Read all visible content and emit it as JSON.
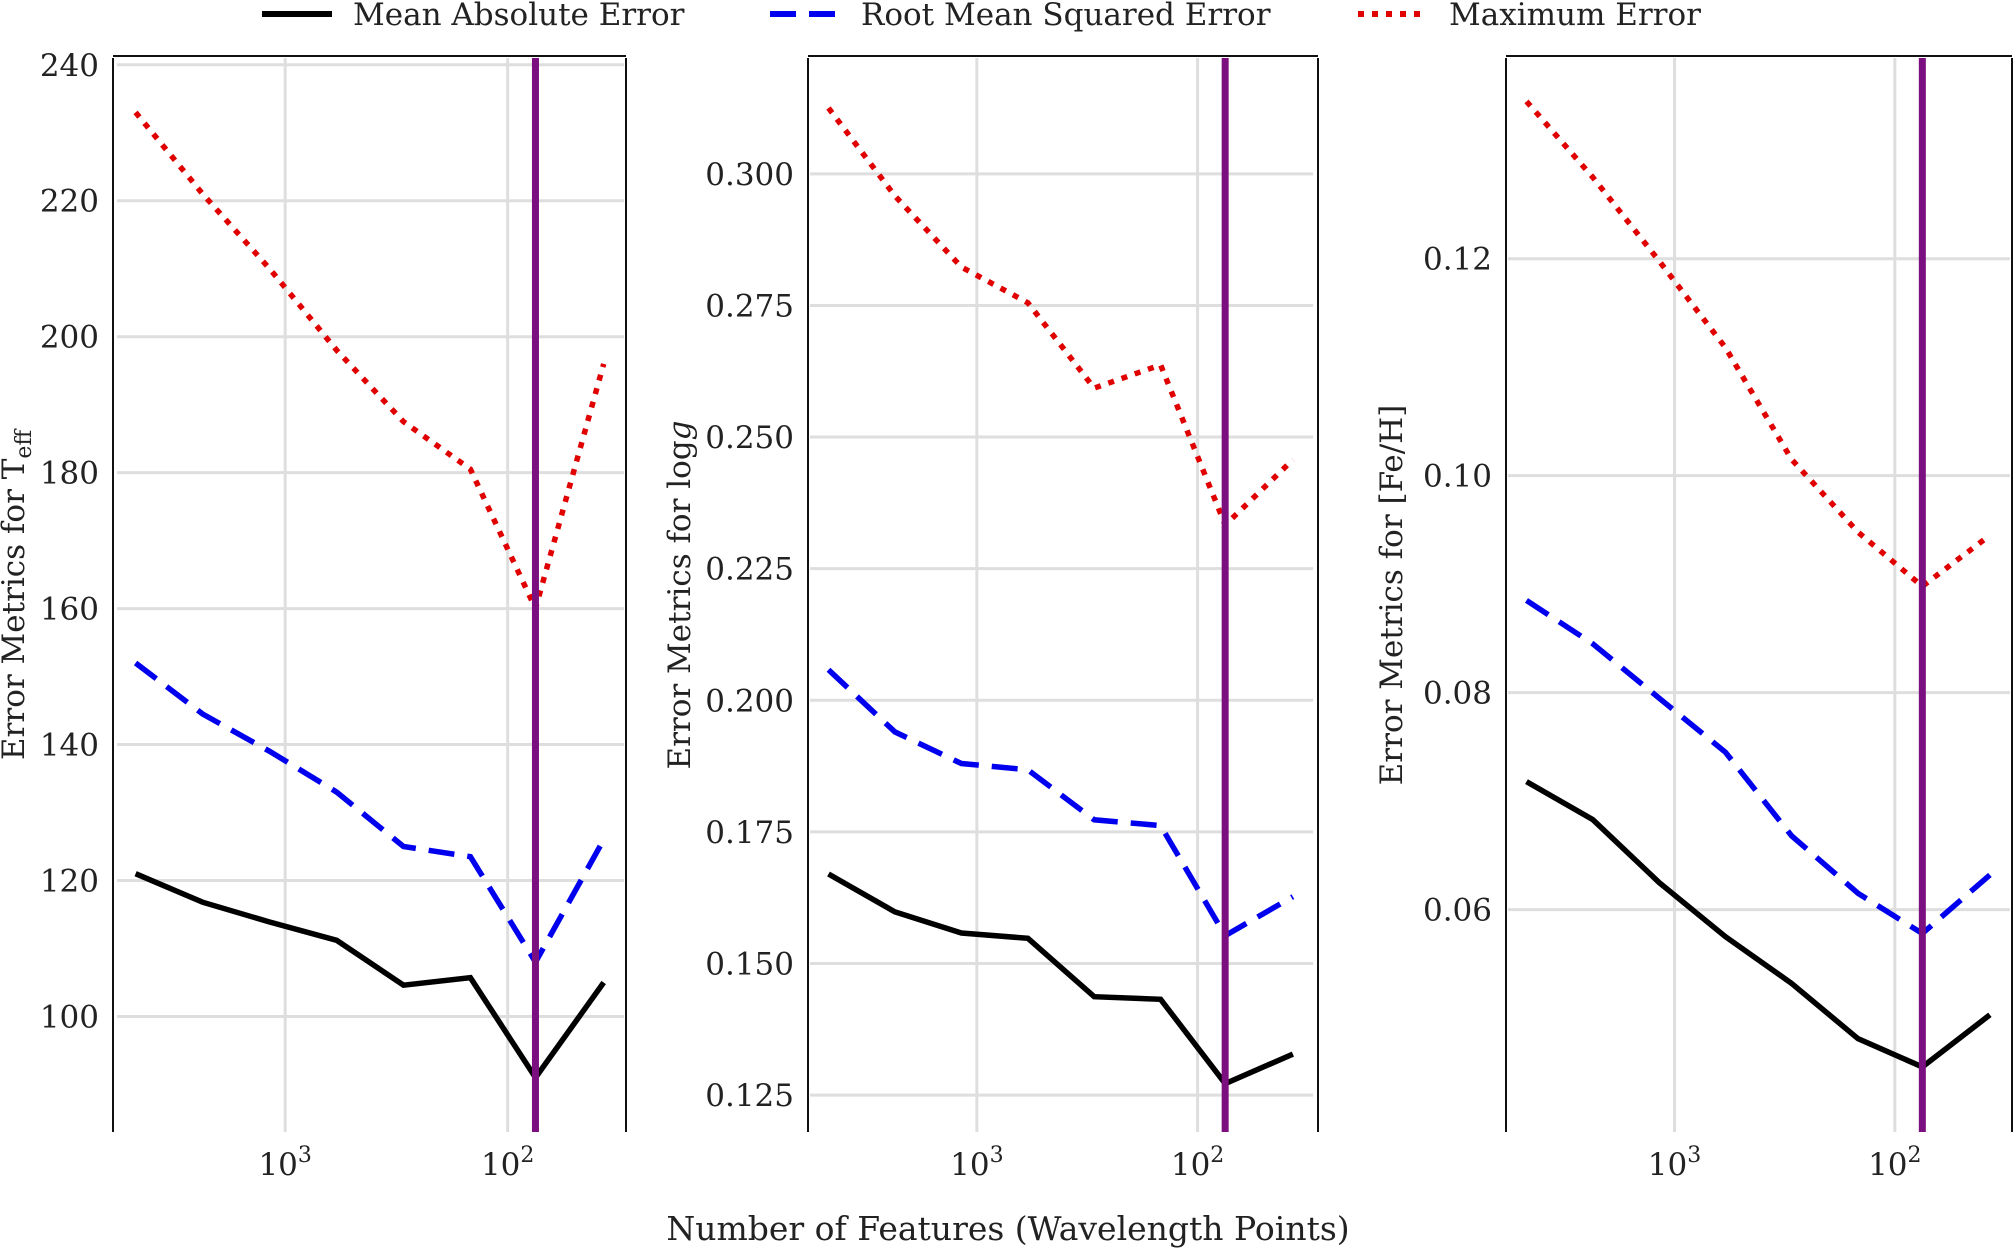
{
  "figure": {
    "xlabel": "Number of Features (Wavelength Points)",
    "legend": {
      "placement": "top-center",
      "entries": [
        {
          "name": "Mean Absolute Error",
          "color": "#000000",
          "dash": "solid"
        },
        {
          "name": "Root Mean Squared Error",
          "color": "#0000ee",
          "dash": "dashed"
        },
        {
          "name": "Maximum Error",
          "color": "#e00000",
          "dash": "dotted"
        }
      ]
    },
    "vline_color": "#7b0f7f",
    "grid": true
  },
  "chart_data": [
    {
      "type": "line",
      "ylabel": "Error Metrics for T",
      "ylabel_sub": "eff",
      "x_scale": "log",
      "x_reversed": true,
      "xlim": [
        5700,
        30
      ],
      "ylim": [
        83,
        241
      ],
      "yticks": [
        100,
        120,
        140,
        160,
        180,
        200,
        220,
        240
      ],
      "ytick_labels": [
        "100",
        "120",
        "140",
        "160",
        "180",
        "200",
        "220",
        "240"
      ],
      "xticks": [
        1000,
        100
      ],
      "xtick_labels": [
        "10^3",
        "10^2"
      ],
      "vline_x": 75,
      "x": [
        4700,
        2350,
        1175,
        587,
        294,
        147,
        75,
        37
      ],
      "series": [
        {
          "name": "Mean Absolute Error",
          "values": [
            121,
            116.8,
            113.9,
            111.2,
            104.6,
            105.7,
            91,
            105
          ]
        },
        {
          "name": "Root Mean Squared Error",
          "values": [
            152,
            144.5,
            139,
            133,
            125,
            123.5,
            108,
            126
          ]
        },
        {
          "name": "Maximum Error",
          "values": [
            233,
            221,
            210,
            198,
            187.5,
            180.5,
            160,
            196
          ]
        }
      ]
    },
    {
      "type": "line",
      "ylabel": "Error Metrics for log",
      "ylabel_italic": "g",
      "x_scale": "log",
      "x_reversed": true,
      "xlim": [
        5700,
        30
      ],
      "ylim": [
        0.118,
        0.322
      ],
      "yticks": [
        0.125,
        0.15,
        0.175,
        0.2,
        0.225,
        0.25,
        0.275,
        0.3
      ],
      "ytick_labels": [
        "0.125",
        "0.150",
        "0.175",
        "0.200",
        "0.225",
        "0.250",
        "0.275",
        "0.300"
      ],
      "xticks": [
        1000,
        100
      ],
      "xtick_labels": [
        "10^3",
        "10^2"
      ],
      "vline_x": 75,
      "x": [
        4700,
        2350,
        1175,
        587,
        294,
        147,
        75,
        37
      ],
      "series": [
        {
          "name": "Mean Absolute Error",
          "values": [
            0.167,
            0.1598,
            0.1558,
            0.1548,
            0.1437,
            0.1432,
            0.1272,
            0.1328
          ]
        },
        {
          "name": "Root Mean Squared Error",
          "values": [
            0.2058,
            0.194,
            0.188,
            0.1868,
            0.1773,
            0.1762,
            0.1553,
            0.1627
          ]
        },
        {
          "name": "Maximum Error",
          "values": [
            0.3125,
            0.2958,
            0.2823,
            0.2755,
            0.2593,
            0.2637,
            0.2333,
            0.2457
          ]
        }
      ]
    },
    {
      "type": "line",
      "ylabel": "Error Metrics for [Fe/H]",
      "x_scale": "log",
      "x_reversed": true,
      "xlim": [
        5700,
        30
      ],
      "ylim": [
        0.0395,
        0.1385
      ],
      "yticks": [
        0.06,
        0.08,
        0.1,
        0.12
      ],
      "ytick_labels": [
        "0.06",
        "0.08",
        "0.10",
        "0.12"
      ],
      "xticks": [
        1000,
        100
      ],
      "xtick_labels": [
        "10^3",
        "10^2"
      ],
      "vline_x": 75,
      "x": [
        4700,
        2350,
        1175,
        587,
        294,
        147,
        75,
        37
      ],
      "series": [
        {
          "name": "Mean Absolute Error",
          "values": [
            0.0718,
            0.0683,
            0.0625,
            0.0575,
            0.0532,
            0.0481,
            0.0455,
            0.0503
          ]
        },
        {
          "name": "Root Mean Squared Error",
          "values": [
            0.0885,
            0.0845,
            0.0795,
            0.0745,
            0.0668,
            0.0615,
            0.0578,
            0.0632
          ]
        },
        {
          "name": "Maximum Error",
          "values": [
            0.1345,
            0.1275,
            0.1198,
            0.1118,
            0.1015,
            0.0948,
            0.0898,
            0.0945
          ]
        }
      ]
    }
  ]
}
